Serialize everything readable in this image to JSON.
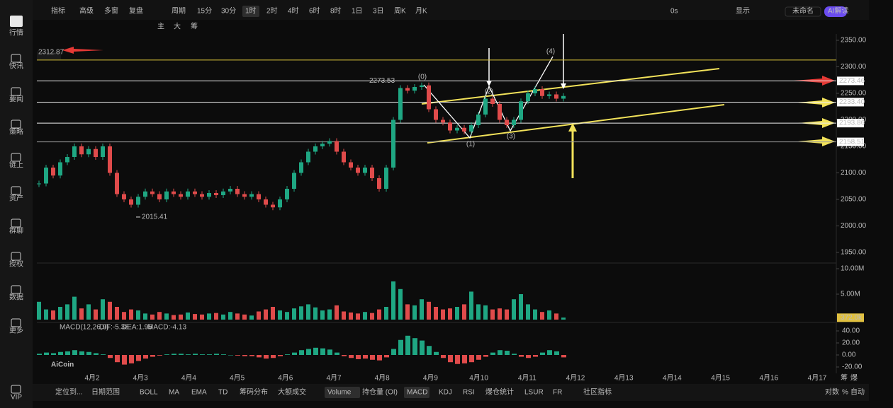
{
  "sidebar": {
    "items": [
      "行情",
      "快讯",
      "要闻",
      "策略",
      "链上",
      "资产",
      "群聊",
      "授权",
      "数据",
      "更多",
      "VIP"
    ]
  },
  "toolbar": {
    "left": [
      "指标",
      "高级",
      "多窗",
      "复盘",
      "周期"
    ],
    "periods": [
      "15分",
      "30分",
      "1时",
      "2时",
      "4时",
      "6时",
      "8时",
      "1日",
      "3日",
      "周K",
      "月K"
    ],
    "active_period": "1时",
    "right": [
      "0s",
      "显示",
      "未命名",
      "AI解读"
    ],
    "drawing_tools": [
      "主",
      "大",
      "筹"
    ]
  },
  "price_chart": {
    "yticks": [
      {
        "value": 2350,
        "label": "2350.00"
      },
      {
        "value": 2300,
        "label": "2300.00"
      },
      {
        "value": 2250,
        "label": "2250.00"
      },
      {
        "value": 2200,
        "label": "2200.00"
      },
      {
        "value": 2150,
        "label": "2150.00"
      },
      {
        "value": 2100,
        "label": "2100.00"
      },
      {
        "value": 2050,
        "label": "2050.00"
      },
      {
        "value": 2000,
        "label": "2000.00"
      },
      {
        "value": 1950,
        "label": "1950.00"
      }
    ],
    "top_level": {
      "value": 2312.87,
      "label": "2312.87"
    },
    "levels": [
      {
        "value": 2273.46,
        "label": "2273.46"
      },
      {
        "value": 2233.4,
        "label": "2233.40"
      },
      {
        "value": 2193.86,
        "label": "2193.86"
      },
      {
        "value": 2158.51,
        "label": "2158.51"
      }
    ],
    "high_label": {
      "value": 2273.53,
      "label": "2273.53"
    },
    "low_label": {
      "value": 2015.41,
      "label": "2015.41"
    },
    "wave_labels": [
      "(0)",
      "(1)",
      "(2)",
      "(3)",
      "(4)"
    ],
    "closes": [
      2080,
      2110,
      2095,
      2120,
      2130,
      2150,
      2135,
      2145,
      2130,
      2150,
      2100,
      2060,
      2050,
      2040,
      2055,
      2065,
      2060,
      2050,
      2065,
      2060,
      2055,
      2065,
      2060,
      2055,
      2062,
      2058,
      2065,
      2070,
      2060,
      2055,
      2060,
      2050,
      2040,
      2035,
      2050,
      2070,
      2100,
      2120,
      2140,
      2150,
      2155,
      2160,
      2140,
      2120,
      2110,
      2100,
      2110,
      2090,
      2070,
      2110,
      2200,
      2260,
      2255,
      2262,
      2265,
      2220,
      2200,
      2195,
      2180,
      2185,
      2178,
      2190,
      2210,
      2240,
      2230,
      2200,
      2190,
      2200,
      2235,
      2250,
      2258,
      2245,
      2248,
      2240,
      2245
    ]
  },
  "volume": {
    "ticks": [
      {
        "value": 10,
        "label": "10.00M"
      },
      {
        "value": 5,
        "label": "5.00M"
      }
    ],
    "current": {
      "value": 0.372,
      "label": "372.0k"
    },
    "values": [
      3.5,
      2.0,
      1.8,
      2.5,
      3.0,
      4.5,
      2.2,
      3.0,
      2.0,
      4.0,
      3.5,
      2.5,
      1.5,
      2.0,
      1.8,
      1.2,
      1.0,
      1.5,
      1.2,
      0.9,
      1.0,
      1.4,
      1.1,
      1.0,
      1.2,
      1.3,
      1.0,
      1.5,
      1.2,
      1.0,
      0.8,
      1.6,
      2.0,
      2.5,
      1.8,
      1.5,
      2.2,
      2.6,
      3.0,
      2.4,
      1.8,
      2.0,
      2.8,
      1.6,
      1.4,
      1.2,
      1.5,
      1.3,
      2.0,
      2.5,
      7.5,
      6.0,
      3.0,
      2.8,
      4.0,
      3.5,
      2.5,
      2.0,
      2.2,
      2.5,
      3.0,
      5.5,
      3.0,
      2.8,
      2.0,
      2.2,
      2.0,
      4.0,
      5.0,
      3.0,
      2.0,
      1.5,
      1.8,
      1.2,
      0.4
    ]
  },
  "macd": {
    "label": "MACD(12,26,9)",
    "dif": "DIF:-5.38",
    "dea": "DEA:1.95",
    "hist_label": "MACD:-4.13",
    "ticks": [
      {
        "value": 40,
        "label": "40.00"
      },
      {
        "value": 20,
        "label": "20.00"
      },
      {
        "value": 0,
        "label": "0.00"
      },
      {
        "value": -20,
        "label": "-20.00"
      }
    ],
    "values": [
      2,
      4,
      3,
      5,
      6,
      8,
      6,
      5,
      3,
      1,
      -5,
      -12,
      -16,
      -14,
      -10,
      -6,
      -3,
      -1,
      1,
      2,
      2,
      1,
      2,
      1,
      1,
      2,
      1,
      0,
      -1,
      -2,
      -2,
      -4,
      -6,
      -5,
      -2,
      1,
      4,
      8,
      10,
      12,
      11,
      9,
      4,
      -2,
      -5,
      -7,
      -6,
      -8,
      -9,
      -4,
      10,
      25,
      32,
      28,
      24,
      15,
      5,
      -5,
      -12,
      -15,
      -14,
      -12,
      -8,
      -3,
      4,
      8,
      7,
      2,
      -3,
      -5,
      -3,
      4,
      8,
      6,
      -4
    ]
  },
  "dates": [
    "4月2",
    "4月3",
    "4月4",
    "4月5",
    "4月6",
    "4月7",
    "4月8",
    "4月9",
    "4月10",
    "4月11",
    "4月12",
    "4月13",
    "4月14",
    "4月15",
    "4月16",
    "4月17"
  ],
  "watermark": "AiCoin",
  "axis_tags": [
    "筹",
    "爆"
  ],
  "bottom_bar": {
    "left": [
      "定位到...",
      "日期范围"
    ],
    "indicators": [
      "BOLL",
      "MA",
      "EMA",
      "TD",
      "筹码分布",
      "大额成交",
      "Volume",
      "持仓量 (OI)",
      "MACD",
      "KDJ",
      "RSI",
      "爆仓统计",
      "LSUR",
      "FR",
      "社区指标"
    ],
    "active": [
      "Volume",
      "MACD"
    ],
    "right": [
      "对数",
      "%",
      "自动"
    ]
  }
}
